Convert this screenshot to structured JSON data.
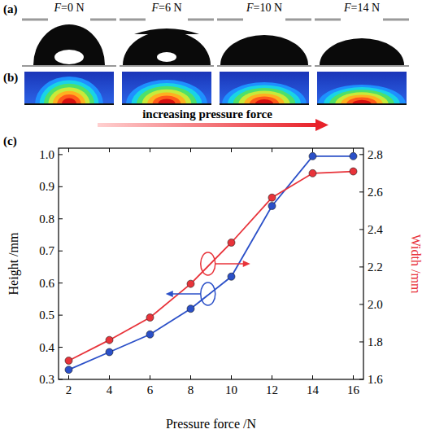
{
  "figure": {
    "panels": [
      {
        "label": "(a)",
        "captions": [
          "F=0 N",
          "F=6 N",
          "F=10 N",
          "F=14 N"
        ]
      },
      {
        "label": "(b)",
        "caption": "increasing pressure force"
      },
      {
        "label": "(c)"
      }
    ]
  },
  "chart_data": {
    "type": "line",
    "x": [
      2,
      4,
      6,
      8,
      10,
      12,
      14,
      16
    ],
    "xlim": [
      1.5,
      16.5
    ],
    "xticks": [
      2,
      4,
      6,
      8,
      10,
      12,
      14,
      16
    ],
    "xlabel": "Pressure force /N",
    "ylabel": "Height /mm",
    "y2label": "Width /mm",
    "ylim": [
      0.3,
      1.02
    ],
    "yticks": [
      0.3,
      0.4,
      0.5,
      0.6,
      0.7,
      0.8,
      0.9,
      {
        "value": 1,
        "label": "1.0"
      }
    ],
    "y2lim": [
      1.6,
      2.834
    ],
    "y2ticks": [
      1.6,
      1.8,
      {
        "value": 2,
        "label": "2.0"
      },
      2.2,
      2.4,
      2.6,
      2.8
    ],
    "grid": false,
    "series": [
      {
        "color": "#2b50c8",
        "marker": "circle",
        "line_style": "solid",
        "values": [
          0.33,
          0.385,
          0.44,
          0.52,
          0.62,
          0.84,
          0.995,
          0.995
        ]
      },
      {
        "color": "#e8333a",
        "marker": "circle",
        "line_style": "solid",
        "axis": "y2",
        "values": [
          1.7,
          1.81,
          1.93,
          2.11,
          2.33,
          2.57,
          2.7,
          2.71
        ]
      }
    ]
  }
}
